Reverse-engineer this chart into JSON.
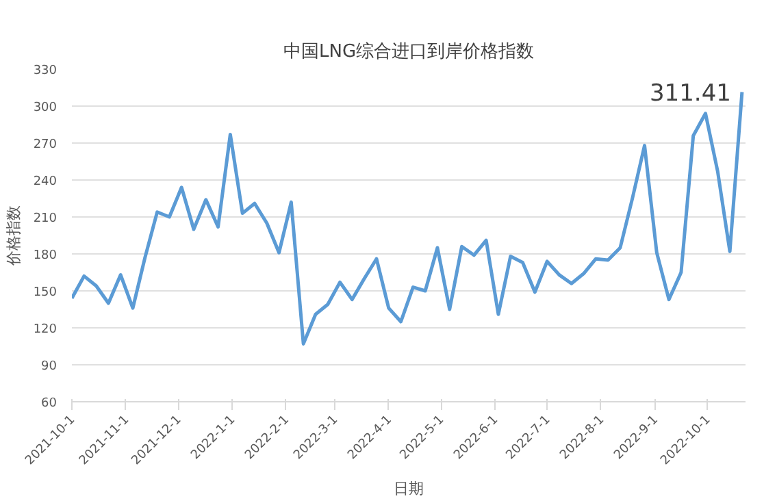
{
  "chart_data": {
    "type": "line",
    "title": "中国LNG综合进口到岸价格指数",
    "xlabel": "日期",
    "ylabel": "价格指数",
    "x": [
      "2021-10-01",
      "2021-10-08",
      "2021-10-15",
      "2021-10-22",
      "2021-10-29",
      "2021-11-05",
      "2021-11-12",
      "2021-11-19",
      "2021-11-26",
      "2021-12-03",
      "2021-12-10",
      "2021-12-17",
      "2021-12-24",
      "2021-12-31",
      "2022-01-07",
      "2022-01-14",
      "2022-01-21",
      "2022-01-28",
      "2022-02-04",
      "2022-02-11",
      "2022-02-18",
      "2022-02-25",
      "2022-03-04",
      "2022-03-11",
      "2022-03-18",
      "2022-03-25",
      "2022-04-01",
      "2022-04-08",
      "2022-04-15",
      "2022-04-22",
      "2022-04-29",
      "2022-05-06",
      "2022-05-13",
      "2022-05-20",
      "2022-05-27",
      "2022-06-03",
      "2022-06-10",
      "2022-06-17",
      "2022-06-24",
      "2022-07-01",
      "2022-07-08",
      "2022-07-15",
      "2022-07-22",
      "2022-07-29",
      "2022-08-05",
      "2022-08-12",
      "2022-08-19",
      "2022-08-26",
      "2022-09-02",
      "2022-09-09",
      "2022-09-16",
      "2022-09-23",
      "2022-09-30",
      "2022-10-07",
      "2022-10-14",
      "2022-10-21"
    ],
    "series": [
      {
        "color": "#5b9bd5",
        "values": [
          144,
          162,
          154,
          140,
          163,
          136,
          177,
          214,
          210,
          234,
          200,
          224,
          202,
          277,
          213,
          221,
          205,
          181,
          222,
          107,
          131,
          139,
          157,
          143,
          160,
          176,
          136,
          125,
          153,
          150,
          185,
          135,
          186,
          179,
          191,
          131,
          178,
          173,
          149,
          174,
          163,
          156,
          164,
          176,
          175,
          185,
          225,
          268,
          181,
          143,
          165,
          276,
          294,
          247,
          182,
          311.41
        ]
      }
    ],
    "xlim": [
      "2021-10-01",
      "2022-10-23"
    ],
    "xticks": [
      {
        "value": "2021-10-01",
        "label": "2021-10-1"
      },
      {
        "value": "2021-11-01",
        "label": "2021-11-1"
      },
      {
        "value": "2021-12-01",
        "label": "2021-12-1"
      },
      {
        "value": "2022-01-01",
        "label": "2022-1-1"
      },
      {
        "value": "2022-02-01",
        "label": "2022-2-1"
      },
      {
        "value": "2022-03-01",
        "label": "2022-3-1"
      },
      {
        "value": "2022-04-01",
        "label": "2022-4-1"
      },
      {
        "value": "2022-05-01",
        "label": "2022-5-1"
      },
      {
        "value": "2022-06-01",
        "label": "2022-6-1"
      },
      {
        "value": "2022-07-01",
        "label": "2022-7-1"
      },
      {
        "value": "2022-08-01",
        "label": "2022-8-1"
      },
      {
        "value": "2022-09-01",
        "label": "2022-9-1"
      },
      {
        "value": "2022-10-01",
        "label": "2022-10-1"
      }
    ],
    "ylim": [
      60,
      330
    ],
    "yticks": [
      60,
      90,
      120,
      150,
      180,
      210,
      240,
      270,
      300,
      330
    ],
    "grid": "y",
    "marker": "none",
    "line_style": "solid",
    "annotations": [
      {
        "text": "311.41",
        "x": "2022-10-21",
        "y": 311.41
      }
    ]
  }
}
